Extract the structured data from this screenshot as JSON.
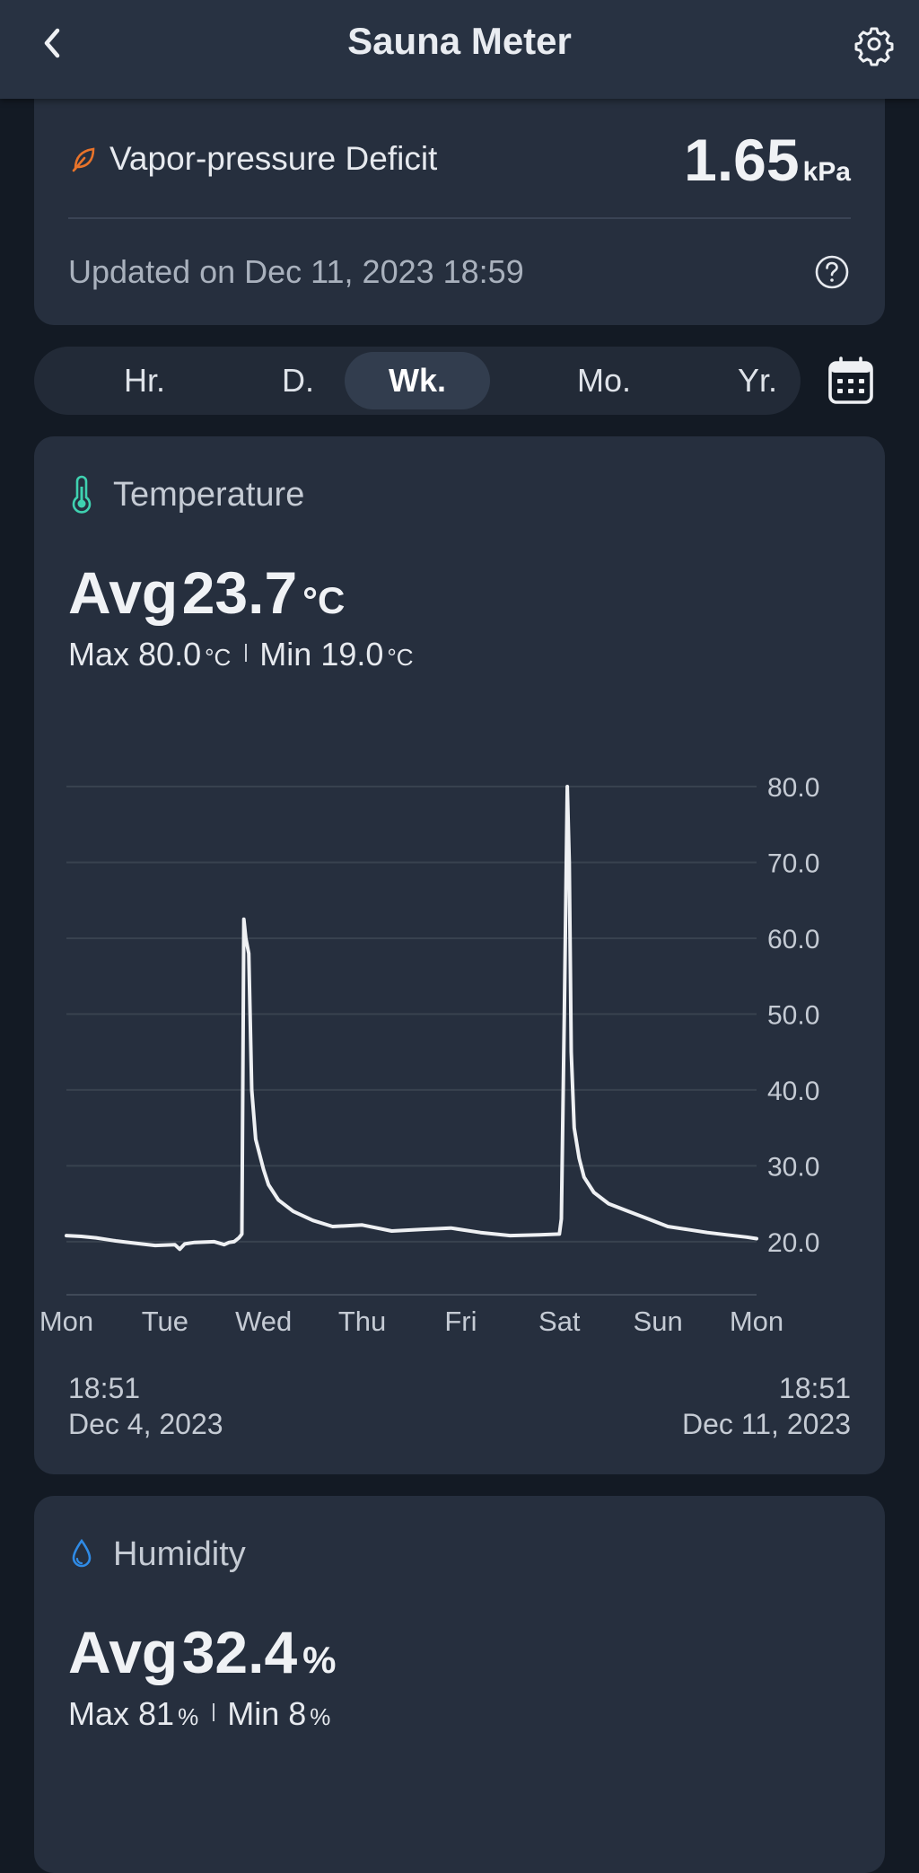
{
  "header": {
    "title": "Sauna Meter",
    "back_icon": "chevron-left-icon",
    "settings_icon": "gear-icon"
  },
  "vpd": {
    "label": "Vapor-pressure Deficit",
    "value": "1.65",
    "unit": "kPa",
    "updated": "Updated on Dec 11, 2023 18:59",
    "icon": "leaf-icon",
    "icon_color": "#e8732a"
  },
  "periods": {
    "items": [
      "Hr.",
      "D.",
      "Wk.",
      "Mo.",
      "Yr."
    ],
    "selected": "Wk.",
    "calendar_icon": "calendar-icon"
  },
  "temperature": {
    "title": "Temperature",
    "avg_prefix": "Avg",
    "avg": "23.7",
    "unit": "°C",
    "max_prefix": "Max",
    "max": "80.0",
    "min_prefix": "Min",
    "min": "19.0",
    "icon": "thermometer-icon",
    "icon_color": "#3fd1b0",
    "range_start_time": "18:51",
    "range_start_date": "Dec 4, 2023",
    "range_end_time": "18:51",
    "range_end_date": "Dec 11, 2023"
  },
  "humidity": {
    "title": "Humidity",
    "avg_prefix": "Avg",
    "avg": "32.4",
    "unit": "%",
    "max_prefix": "Max",
    "max": "81",
    "min_prefix": "Min",
    "min": "8",
    "icon": "water-drop-icon",
    "icon_color": "#2f8be6"
  },
  "chart_data": {
    "type": "line",
    "x_ticks": [
      "Mon",
      "Tue",
      "Wed",
      "Thu",
      "Fri",
      "Sat",
      "Sun",
      "Mon"
    ],
    "y_ticks": [
      "80.0",
      "70.0",
      "60.0",
      "50.0",
      "40.0",
      "30.0",
      "20.0"
    ],
    "ylim": [
      13,
      80
    ],
    "xlim": [
      0,
      7
    ],
    "grid": true,
    "line_color": "#eef0f3",
    "series": [
      {
        "x": [
          0,
          0.15,
          0.3,
          0.5,
          0.7,
          0.9,
          1.1,
          1.15,
          1.2,
          1.3,
          1.5,
          1.6,
          1.65,
          1.7,
          1.75,
          1.78,
          1.8,
          1.82,
          1.85,
          1.88,
          1.92,
          2.0,
          2.05,
          2.15,
          2.3,
          2.5,
          2.7,
          3.0,
          3.3,
          3.6,
          3.9,
          4.2,
          4.5,
          4.8,
          5.0,
          5.02,
          5.05,
          5.08,
          5.1,
          5.12,
          5.15,
          5.2,
          5.25,
          5.35,
          5.5,
          5.7,
          5.9,
          6.1,
          6.3,
          6.5,
          6.7,
          6.9,
          7.0
        ],
        "y": [
          20.8,
          20.7,
          20.5,
          20.1,
          19.8,
          19.5,
          19.6,
          19.0,
          19.7,
          19.9,
          20.0,
          19.6,
          19.9,
          20.0,
          20.5,
          21.0,
          62.5,
          60.0,
          58.0,
          40.0,
          33.5,
          29.5,
          27.5,
          25.5,
          24.0,
          22.8,
          22.0,
          22.2,
          21.4,
          21.6,
          21.8,
          21.2,
          20.8,
          20.9,
          21.0,
          23.0,
          50.0,
          80.0,
          70.0,
          45.0,
          35.0,
          31.0,
          28.5,
          26.5,
          25.0,
          24.0,
          23.0,
          22.0,
          21.6,
          21.2,
          20.9,
          20.6,
          20.4
        ]
      }
    ]
  }
}
